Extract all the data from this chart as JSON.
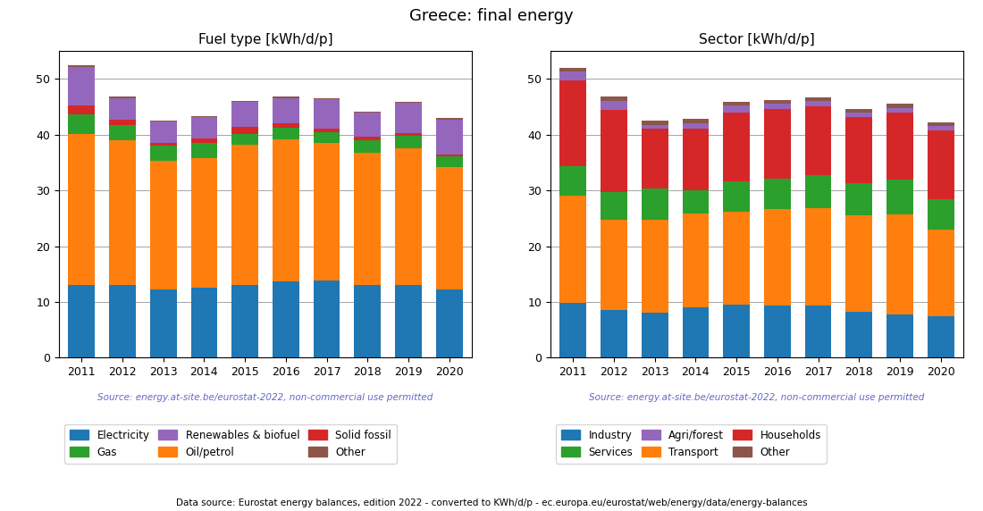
{
  "years": [
    2011,
    2012,
    2013,
    2014,
    2015,
    2016,
    2017,
    2018,
    2019,
    2020
  ],
  "title": "Greece: final energy",
  "source_text": "Source: energy.at-site.be/eurostat-2022, non-commercial use permitted",
  "footer_text": "Data source: Eurostat energy balances, edition 2022 - converted to KWh/d/p - ec.europa.eu/eurostat/web/energy/data/energy-balances",
  "fuel_title": "Fuel type [kWh/d/p]",
  "fuel_electricity": [
    13.0,
    13.0,
    12.2,
    12.5,
    13.0,
    13.7,
    13.8,
    13.0,
    13.0,
    12.2
  ],
  "fuel_oil": [
    27.2,
    26.0,
    23.1,
    23.3,
    25.2,
    25.5,
    24.8,
    23.8,
    24.5,
    22.0
  ],
  "fuel_gas": [
    3.5,
    2.7,
    2.8,
    2.7,
    2.0,
    2.0,
    1.8,
    2.2,
    2.3,
    1.9
  ],
  "fuel_solid": [
    1.5,
    1.0,
    0.5,
    0.8,
    1.2,
    0.9,
    0.7,
    0.7,
    0.5,
    0.4
  ],
  "fuel_renewables": [
    7.0,
    3.9,
    3.8,
    3.8,
    4.5,
    4.5,
    5.2,
    4.2,
    5.4,
    6.2
  ],
  "fuel_other": [
    0.3,
    0.2,
    0.2,
    0.2,
    0.2,
    0.2,
    0.2,
    0.2,
    0.2,
    0.3
  ],
  "sector_title": "Sector [kWh/d/p]",
  "sector_industry": [
    9.8,
    8.6,
    8.1,
    9.0,
    9.5,
    9.3,
    9.3,
    8.2,
    7.7,
    7.5
  ],
  "sector_transport": [
    19.2,
    16.2,
    16.7,
    16.8,
    16.7,
    17.3,
    17.5,
    17.3,
    18.0,
    15.5
  ],
  "sector_services": [
    5.3,
    4.9,
    5.5,
    4.3,
    5.5,
    5.5,
    6.0,
    5.8,
    6.2,
    5.5
  ],
  "sector_households": [
    15.5,
    14.8,
    10.8,
    11.0,
    12.3,
    12.5,
    12.3,
    11.8,
    12.0,
    12.3
  ],
  "sector_agriforest": [
    1.5,
    1.5,
    0.7,
    1.0,
    1.2,
    0.9,
    0.9,
    0.8,
    0.9,
    0.7
  ],
  "sector_other": [
    0.7,
    0.8,
    0.7,
    0.7,
    0.7,
    0.7,
    0.7,
    0.7,
    0.7,
    0.7
  ],
  "color_electricity": "#1f77b4",
  "color_oil": "#ff7f0e",
  "color_gas": "#2ca02c",
  "color_solid": "#d62728",
  "color_renewables": "#9467bd",
  "color_fuel_other": "#8c564b",
  "color_industry": "#1f77b4",
  "color_transport": "#ff7f0e",
  "color_services": "#2ca02c",
  "color_households": "#d62728",
  "color_agriforest": "#9467bd",
  "color_sector_other": "#8c564b",
  "source_color": "#6666cc",
  "footer_color": "#000000",
  "ylim": [
    0,
    55
  ],
  "yticks": [
    0,
    10,
    20,
    30,
    40,
    50
  ]
}
